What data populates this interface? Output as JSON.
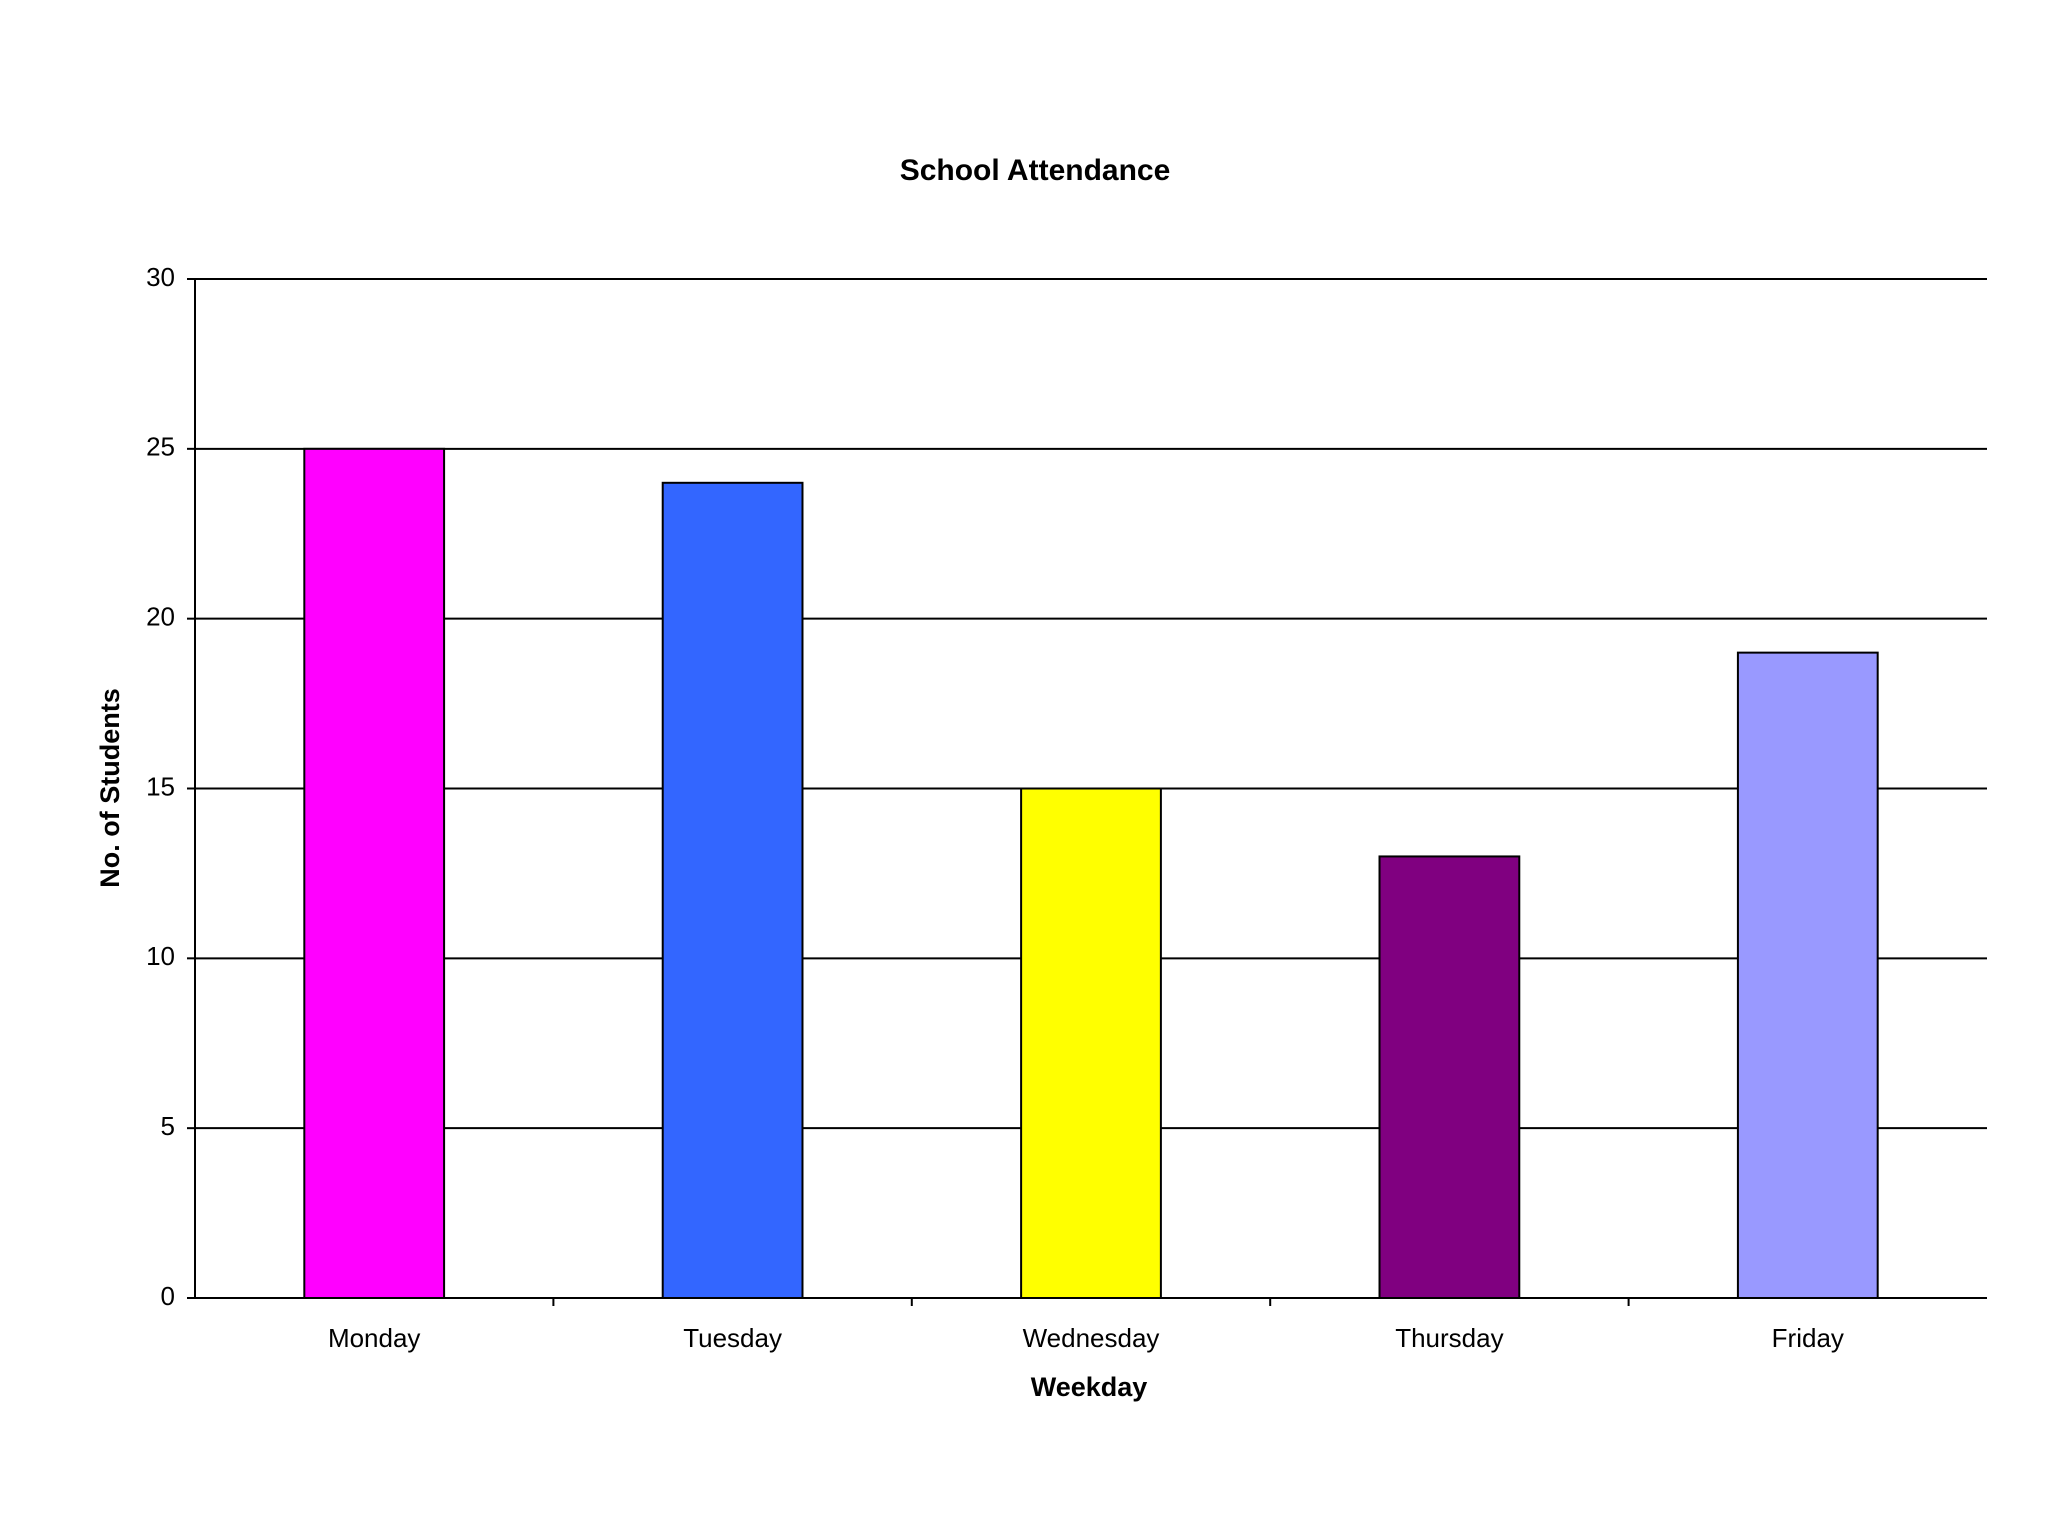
{
  "chart_data": {
    "type": "bar",
    "title": "School Attendance",
    "x_label": "Weekday",
    "y_label": "No. of Students",
    "categories": [
      "Monday",
      "Tuesday",
      "Wednesday",
      "Thursday",
      "Friday"
    ],
    "values": [
      25,
      24,
      15,
      13,
      19
    ],
    "colors": [
      "#ff00ff",
      "#3366ff",
      "#ffff00",
      "#800080",
      "#9999ff"
    ],
    "ylim": [
      0,
      30
    ],
    "yticks": [
      0,
      5,
      10,
      15,
      20,
      25,
      30
    ],
    "grid": true
  }
}
